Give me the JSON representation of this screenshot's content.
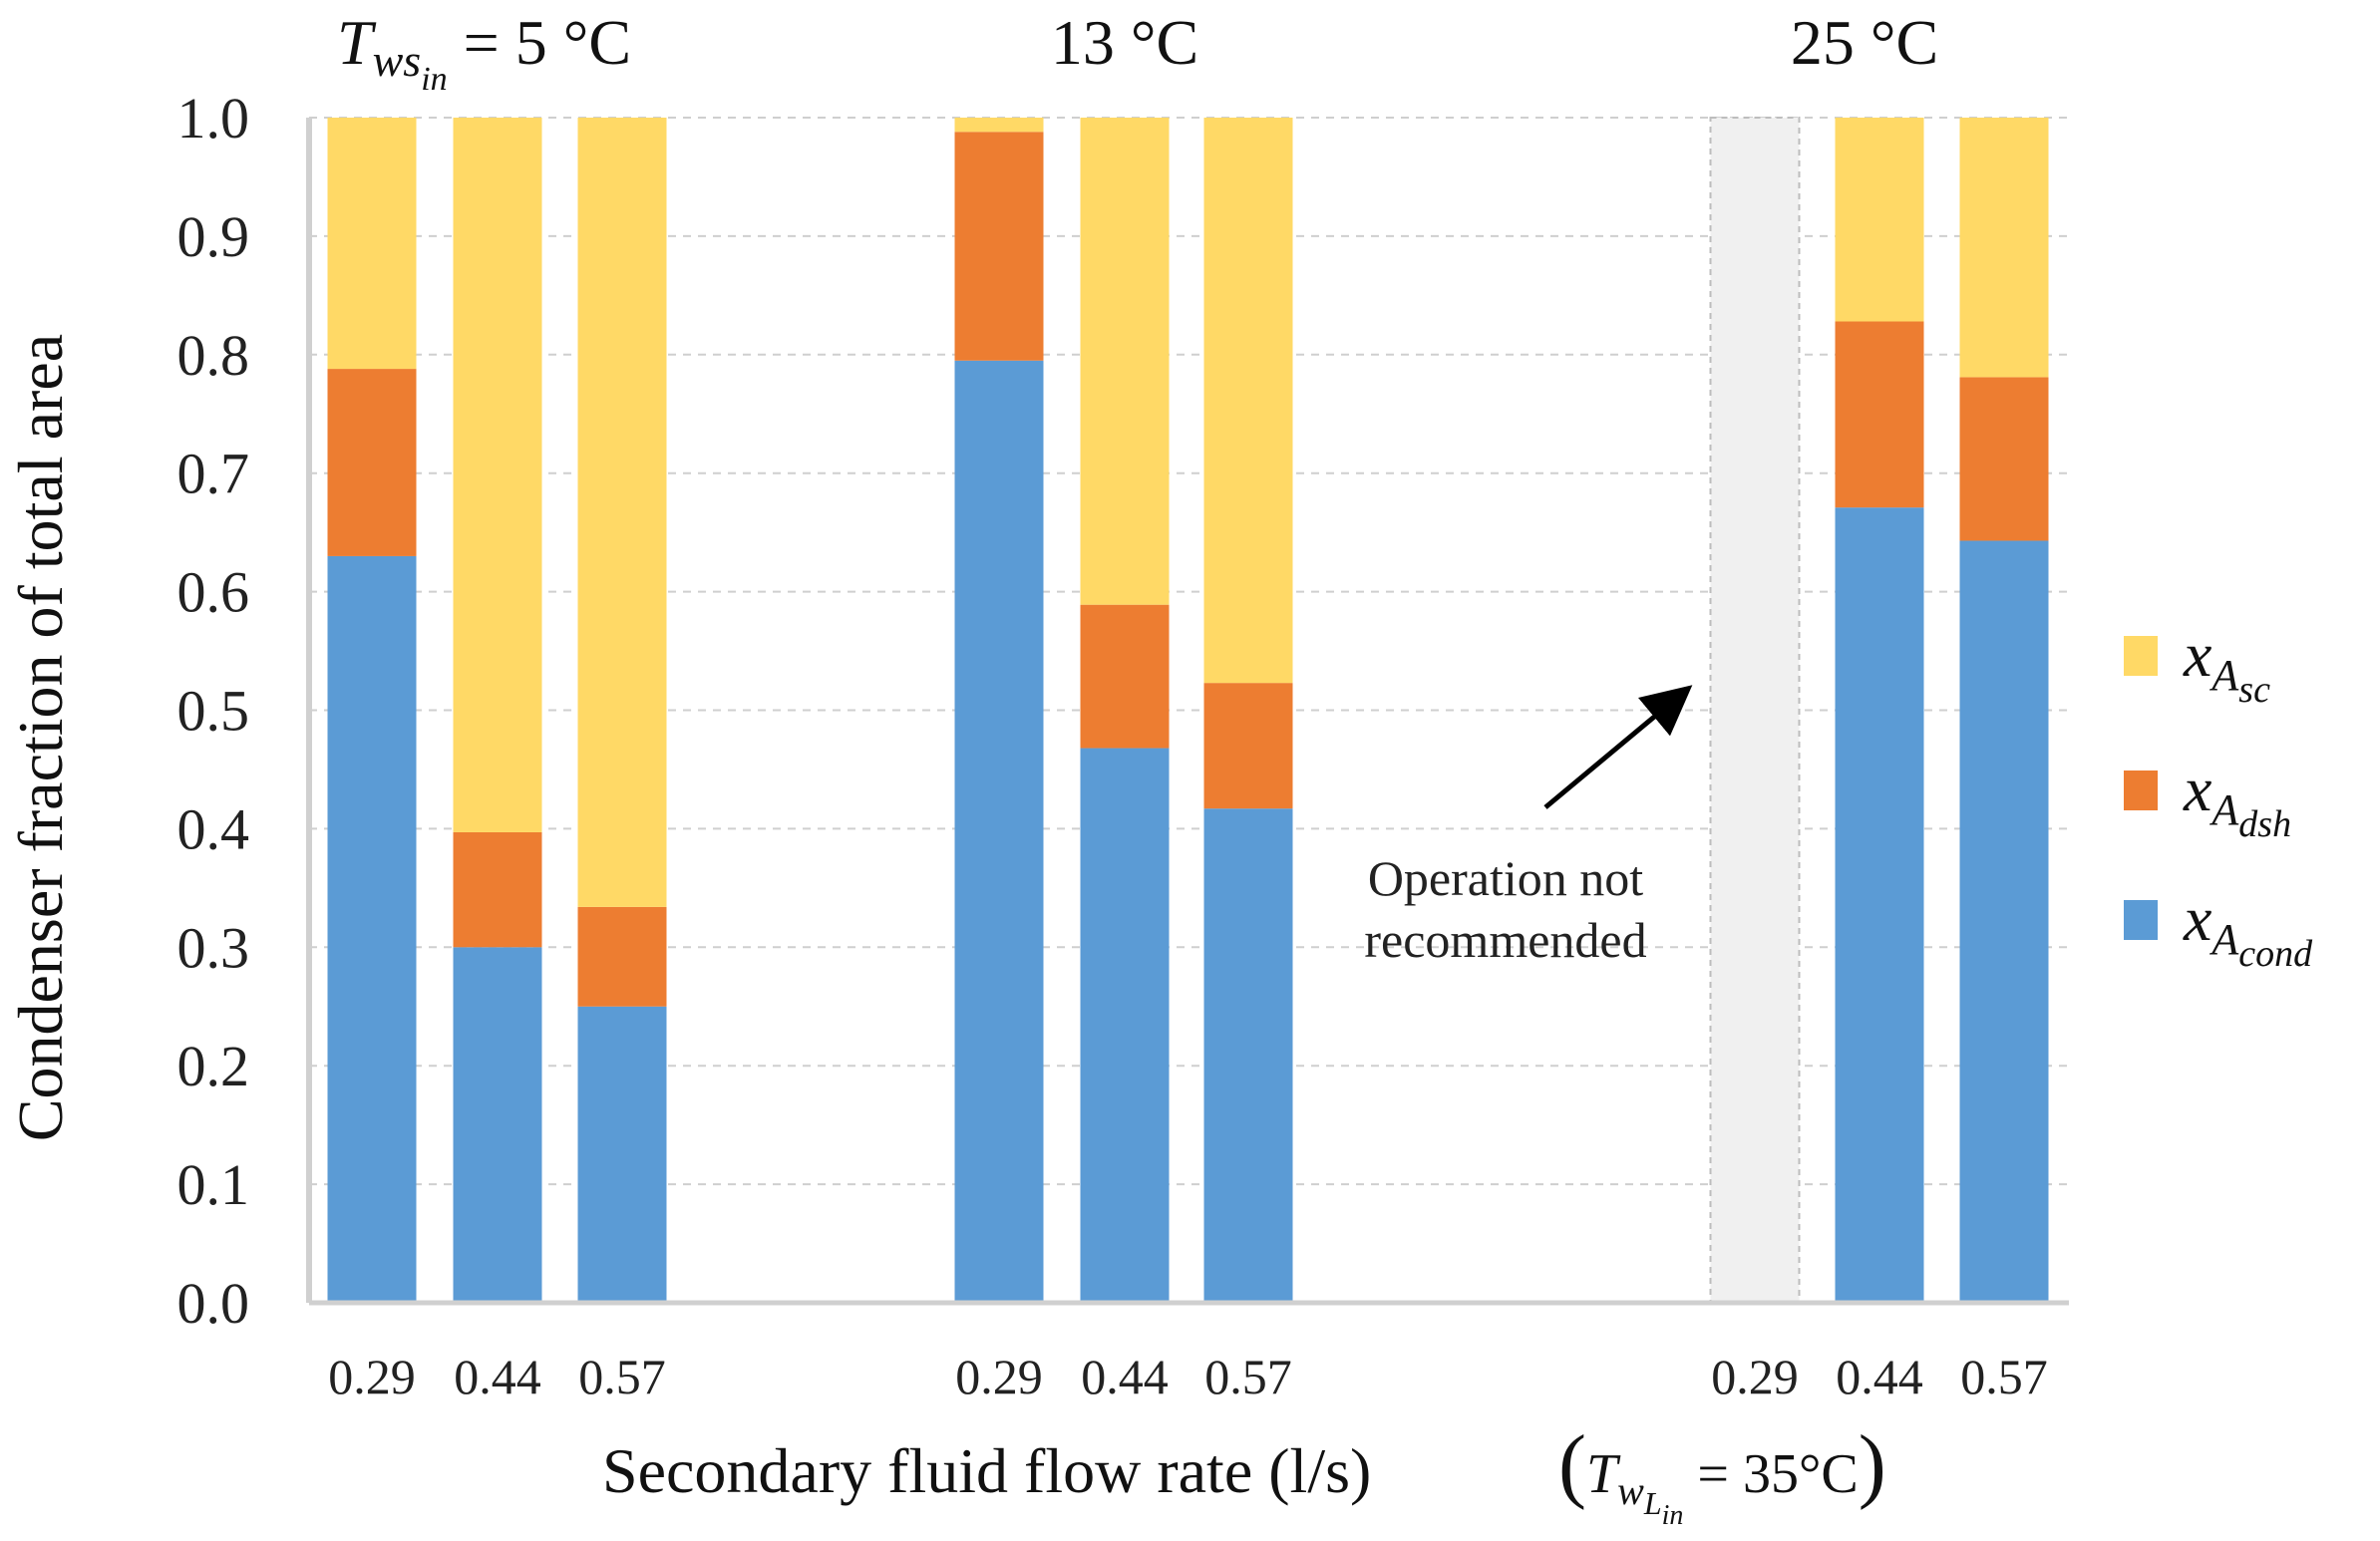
{
  "chart_data": {
    "type": "bar",
    "stacked": true,
    "title": "",
    "ylabel": "Condenser fraction of total area",
    "xlabel": "Secondary fluid  flow rate (l/s)",
    "xlabel_condition": "(T_wL_in = 35°C)",
    "ylim": [
      0,
      1.0
    ],
    "yticks": [
      "0.0",
      "0.1",
      "0.2",
      "0.3",
      "0.4",
      "0.5",
      "0.6",
      "0.7",
      "0.8",
      "0.9",
      "1.0"
    ],
    "grid": true,
    "groups": [
      {
        "label_prefix": "T",
        "label_sub": "ws",
        "label_subsub": "in",
        "label": "= 5 °C",
        "categories": [
          "0.29",
          "0.44",
          "0.57"
        ]
      },
      {
        "label": "13 °C",
        "categories": [
          "0.29",
          "0.44",
          "0.57"
        ]
      },
      {
        "label": "25 °C",
        "categories": [
          "0.29",
          "0.44",
          "0.57"
        ]
      }
    ],
    "categories": [
      "0.29",
      "0.44",
      "0.57",
      "0.29",
      "0.44",
      "0.57",
      "0.29",
      "0.44",
      "0.57"
    ],
    "series": [
      {
        "name": "x_A_cond",
        "color": "#5B9BD5",
        "values": [
          0.63,
          0.3,
          0.25,
          0.795,
          0.468,
          0.417,
          null,
          0.671,
          0.643
        ]
      },
      {
        "name": "x_A_dsh",
        "color": "#ED7D31",
        "values": [
          0.158,
          0.097,
          0.084,
          0.193,
          0.121,
          0.106,
          null,
          0.157,
          0.138
        ]
      },
      {
        "name": "x_A_sc",
        "color": "#FFD966",
        "values": [
          0.212,
          0.603,
          0.666,
          0.012,
          0.411,
          0.477,
          null,
          0.172,
          0.219
        ]
      }
    ],
    "legend": [
      {
        "base": "x",
        "sub": "A",
        "subsub": "sc",
        "color": "#FFD966"
      },
      {
        "base": "x",
        "sub": "A",
        "subsub": "dsh",
        "color": "#ED7D31"
      },
      {
        "base": "x",
        "sub": "A",
        "subsub": "cond",
        "color": "#5B9BD5"
      }
    ],
    "legend_position": "right",
    "annotation": {
      "lines": [
        "Operation not",
        "recommended"
      ],
      "target_category_index": 6,
      "placeholder_value": 1.0
    }
  }
}
